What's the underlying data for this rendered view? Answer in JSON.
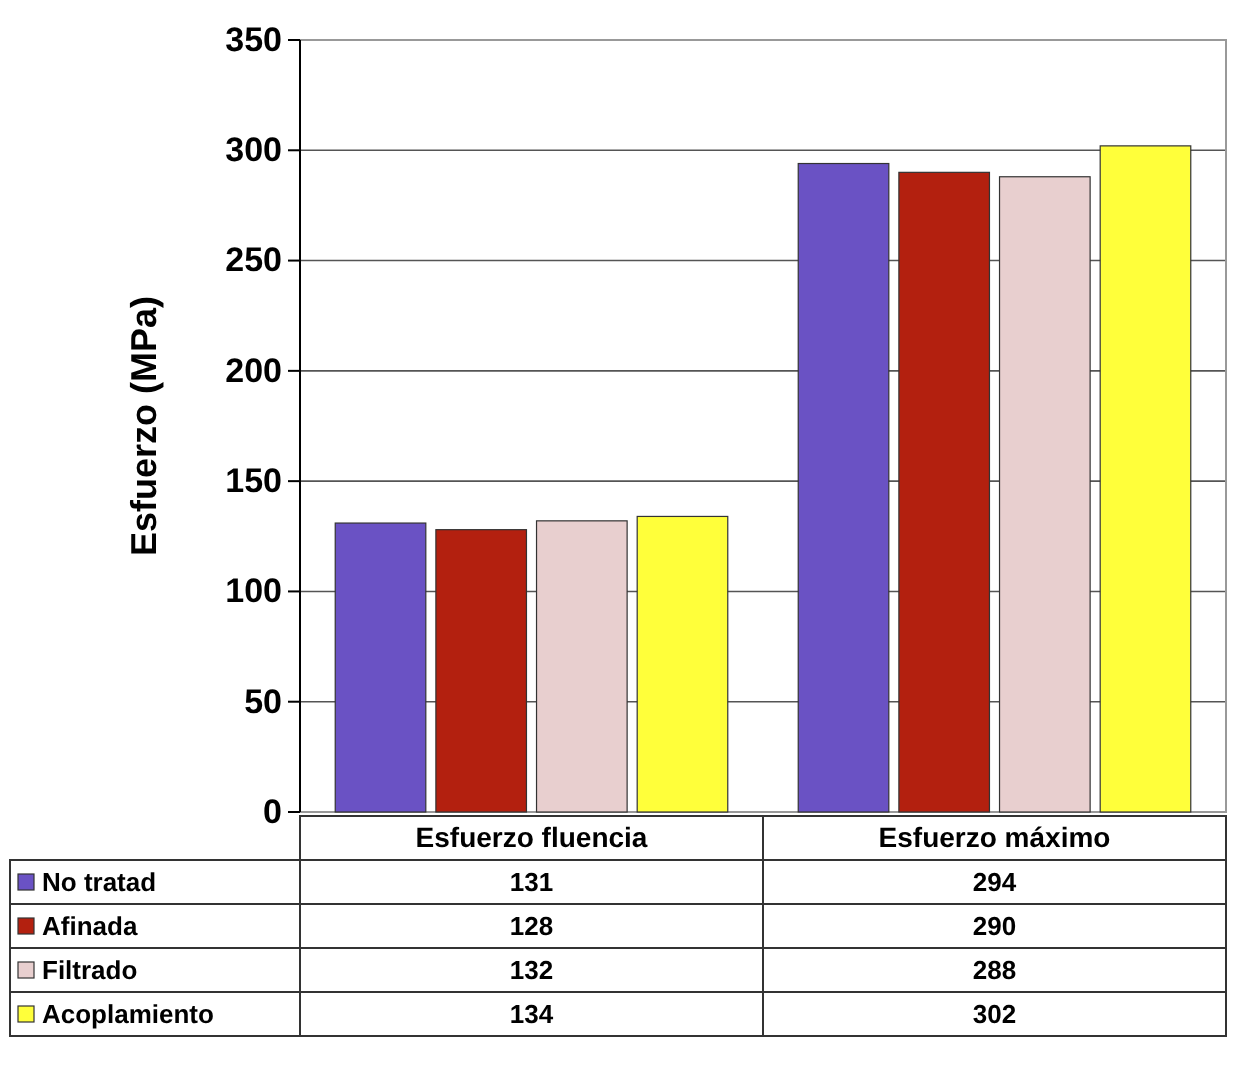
{
  "chart_data": {
    "type": "bar",
    "ylabel": "Esfuerzo (MPa)",
    "categories": [
      "Esfuerzo fluencia",
      "Esfuerzo máximo"
    ],
    "series": [
      {
        "name": "No tratad",
        "color": "#6a52c4",
        "values": [
          131,
          294
        ]
      },
      {
        "name": "Afinada",
        "color": "#b3200f",
        "values": [
          128,
          290
        ]
      },
      {
        "name": "Filtrado",
        "color": "#e8cfcf",
        "values": [
          132,
          288
        ]
      },
      {
        "name": "Acoplamiento",
        "color": "#ffff3a",
        "values": [
          134,
          302
        ]
      }
    ],
    "ylim": [
      0,
      350
    ],
    "yticks": [
      0,
      50,
      100,
      150,
      200,
      250,
      300,
      350
    ],
    "grid": "y",
    "legend": "bottom left",
    "data_labels": true
  }
}
